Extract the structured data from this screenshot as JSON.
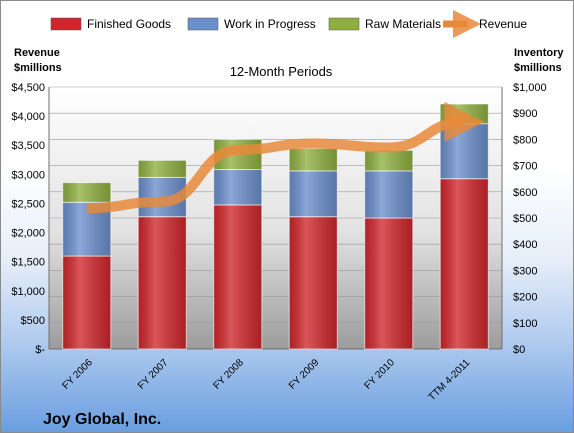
{
  "chart_data": {
    "type": "bar",
    "subtitle": "12-Month Periods",
    "footer_title": "Joy Global, Inc.",
    "left_axis_title": [
      "Revenue",
      "$millions"
    ],
    "right_axis_title": [
      "Inventory",
      "$millions"
    ],
    "categories": [
      "FY 2006",
      "FY 2007",
      "FY 2008",
      "FY 2009",
      "FY 2010",
      "TTM 4-2011"
    ],
    "stacked": true,
    "series": [
      {
        "name": "Finished Goods",
        "color": "#d0262b",
        "axis": "right",
        "values": [
          355,
          505,
          550,
          505,
          500,
          650
        ]
      },
      {
        "name": "Work in Progress",
        "color": "#6b8fcc",
        "axis": "right",
        "values": [
          205,
          150,
          135,
          175,
          180,
          210
        ]
      },
      {
        "name": "Raw Materials",
        "color": "#8fb040",
        "axis": "right",
        "values": [
          75,
          65,
          115,
          85,
          78,
          75
        ]
      }
    ],
    "line_series": {
      "name": "Revenue",
      "color": "#e8893a",
      "axis": "left",
      "values": [
        2420,
        2530,
        3420,
        3530,
        3460,
        3900
      ]
    },
    "left_axis": {
      "min": 0,
      "max": 4500,
      "step": 500,
      "tick_labels": [
        "$-",
        "$500",
        "$1,000",
        "$1,500",
        "$2,000",
        "$2,500",
        "$3,000",
        "$3,500",
        "$4,000",
        "$4,500"
      ]
    },
    "right_axis": {
      "min": 0,
      "max": 1000,
      "step": 100,
      "tick_labels": [
        "$0",
        "$100",
        "$200",
        "$300",
        "$400",
        "$500",
        "$600",
        "$700",
        "$800",
        "$900",
        "$1,000"
      ]
    },
    "legend_position": "top",
    "grid": true
  }
}
